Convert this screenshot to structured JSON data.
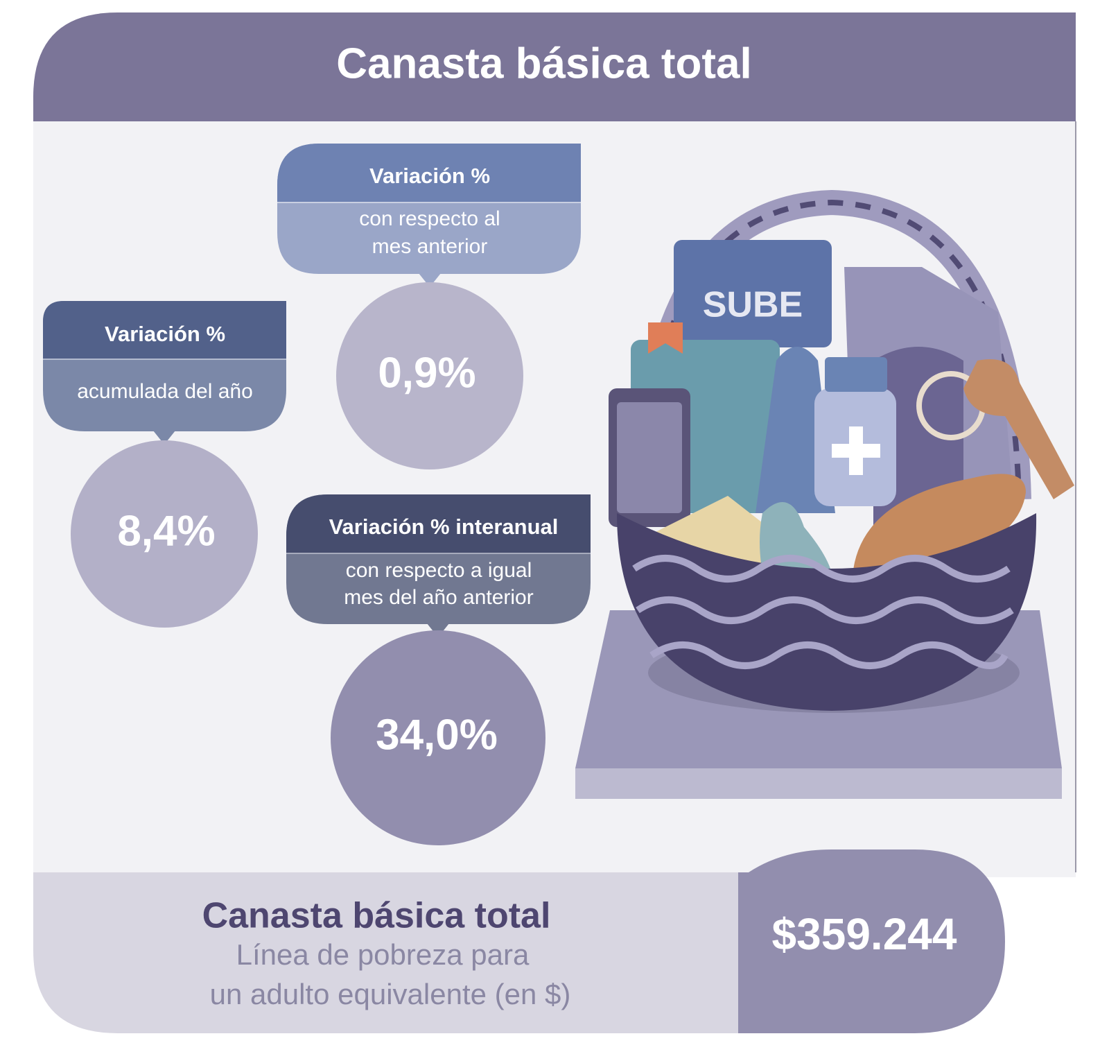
{
  "header": {
    "title": "Canasta básica total"
  },
  "indicators": [
    {
      "title": "Variación %",
      "subtitle_lines": [
        "con respecto al",
        "mes anterior"
      ],
      "value": "0,9%"
    },
    {
      "title": "Variación %",
      "subtitle_lines": [
        "acumulada del año"
      ],
      "value": "8,4%"
    },
    {
      "title": "Variación % interanual",
      "subtitle_lines": [
        "con respecto a igual",
        "mes del año anterior"
      ],
      "value": "34,0%"
    }
  ],
  "footer": {
    "title": "Canasta básica total",
    "subtitle_lines": [
      "Línea de pobreza para",
      "un adulto equivalente (en $)"
    ],
    "value": "$359.244"
  },
  "illustration": {
    "card_text": "SUBE"
  }
}
